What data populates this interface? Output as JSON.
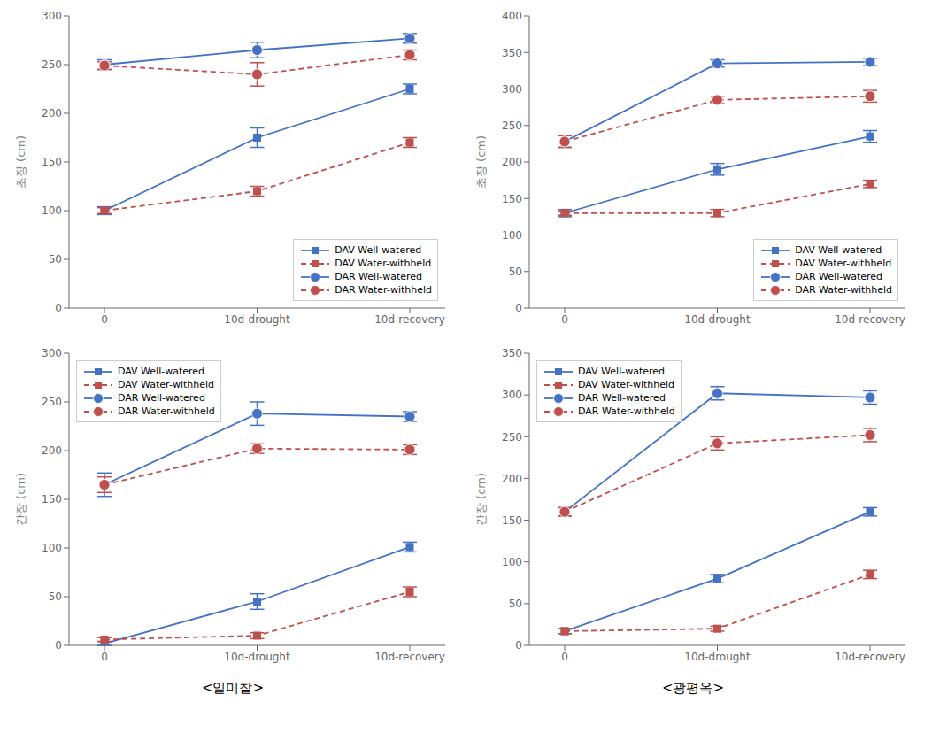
{
  "chart_data": [
    {
      "type": "line",
      "categories": [
        "0",
        "10d-drought",
        "10d-recovery"
      ],
      "ylabel": "초장 (cm)",
      "ylim": [
        0,
        300
      ],
      "yticks": [
        0,
        50,
        100,
        150,
        200,
        250,
        300
      ],
      "grid": false,
      "legend": "lower right",
      "series": [
        {
          "name": "DAV Well-watered",
          "color": "#4472C4",
          "line_style": "solid",
          "marker": "square",
          "values": [
            100,
            175,
            225
          ],
          "errors": [
            4,
            10,
            5
          ]
        },
        {
          "name": "DAV Water-withheld",
          "color": "#C0504D",
          "line_style": "dashed",
          "marker": "square",
          "values": [
            100,
            120,
            170
          ],
          "errors": [
            3,
            5,
            5
          ]
        },
        {
          "name": "DAR Well-watered",
          "color": "#4472C4",
          "line_style": "solid",
          "marker": "circle",
          "values": [
            250,
            265,
            277
          ],
          "errors": [
            5,
            8,
            5
          ]
        },
        {
          "name": "DAR Water-withheld",
          "color": "#C0504D",
          "line_style": "dashed",
          "marker": "circle",
          "values": [
            249,
            240,
            260
          ],
          "errors": [
            4,
            12,
            5
          ]
        }
      ]
    },
    {
      "type": "line",
      "categories": [
        "0",
        "10d-drought",
        "10d-recovery"
      ],
      "ylabel": "초장 (cm)",
      "ylim": [
        0,
        400
      ],
      "yticks": [
        0,
        50,
        100,
        150,
        200,
        250,
        300,
        350,
        400
      ],
      "grid": false,
      "legend": "lower right",
      "series": [
        {
          "name": "DAV Well-watered",
          "color": "#4472C4",
          "line_style": "solid",
          "marker": "square",
          "values": [
            130,
            190,
            235
          ],
          "errors": [
            5,
            8,
            8
          ]
        },
        {
          "name": "DAV Water-withheld",
          "color": "#C0504D",
          "line_style": "dashed",
          "marker": "square",
          "values": [
            130,
            130,
            170
          ],
          "errors": [
            3,
            5,
            5
          ]
        },
        {
          "name": "DAR Well-watered",
          "color": "#4472C4",
          "line_style": "solid",
          "marker": "circle",
          "values": [
            228,
            335,
            337
          ],
          "errors": [
            8,
            5,
            5
          ]
        },
        {
          "name": "DAR Water-withheld",
          "color": "#C0504D",
          "line_style": "dashed",
          "marker": "circle",
          "values": [
            228,
            285,
            290
          ],
          "errors": [
            8,
            5,
            8
          ]
        }
      ]
    },
    {
      "type": "line",
      "categories": [
        "0",
        "10d-drought",
        "10d-recovery"
      ],
      "ylabel": "간장 (cm)",
      "ylim": [
        0,
        300
      ],
      "yticks": [
        0,
        50,
        100,
        150,
        200,
        250,
        300
      ],
      "grid": false,
      "legend": "upper left",
      "subtitle": "<일미찰>",
      "series": [
        {
          "name": "DAV Well-watered",
          "color": "#4472C4",
          "line_style": "solid",
          "marker": "square",
          "values": [
            2,
            45,
            101
          ],
          "errors": [
            2,
            8,
            5
          ]
        },
        {
          "name": "DAV Water-withheld",
          "color": "#C0504D",
          "line_style": "dashed",
          "marker": "square",
          "values": [
            6,
            10,
            55
          ],
          "errors": [
            2,
            3,
            5
          ]
        },
        {
          "name": "DAR Well-watered",
          "color": "#4472C4",
          "line_style": "solid",
          "marker": "circle",
          "values": [
            165,
            238,
            235
          ],
          "errors": [
            12,
            12,
            5
          ]
        },
        {
          "name": "DAR Water-withheld",
          "color": "#C0504D",
          "line_style": "dashed",
          "marker": "circle",
          "values": [
            165,
            202,
            201
          ],
          "errors": [
            8,
            5,
            5
          ]
        }
      ]
    },
    {
      "type": "line",
      "categories": [
        "0",
        "10d-drought",
        "10d-recovery"
      ],
      "ylabel": "간장 (cm)",
      "ylim": [
        0,
        350
      ],
      "yticks": [
        0,
        50,
        100,
        150,
        200,
        250,
        300,
        350
      ],
      "grid": false,
      "legend": "upper left",
      "subtitle": "<광평옥>",
      "series": [
        {
          "name": "DAV Well-watered",
          "color": "#4472C4",
          "line_style": "solid",
          "marker": "square",
          "values": [
            17,
            80,
            160
          ],
          "errors": [
            3,
            5,
            5
          ]
        },
        {
          "name": "DAV Water-withheld",
          "color": "#C0504D",
          "line_style": "dashed",
          "marker": "square",
          "values": [
            17,
            20,
            85
          ],
          "errors": [
            3,
            3,
            5
          ]
        },
        {
          "name": "DAR Well-watered",
          "color": "#4472C4",
          "line_style": "solid",
          "marker": "circle",
          "values": [
            160,
            302,
            297
          ],
          "errors": [
            5,
            8,
            8
          ]
        },
        {
          "name": "DAR Water-withheld",
          "color": "#C0504D",
          "line_style": "dashed",
          "marker": "circle",
          "values": [
            160,
            242,
            252
          ],
          "errors": [
            5,
            8,
            8
          ]
        }
      ]
    }
  ]
}
